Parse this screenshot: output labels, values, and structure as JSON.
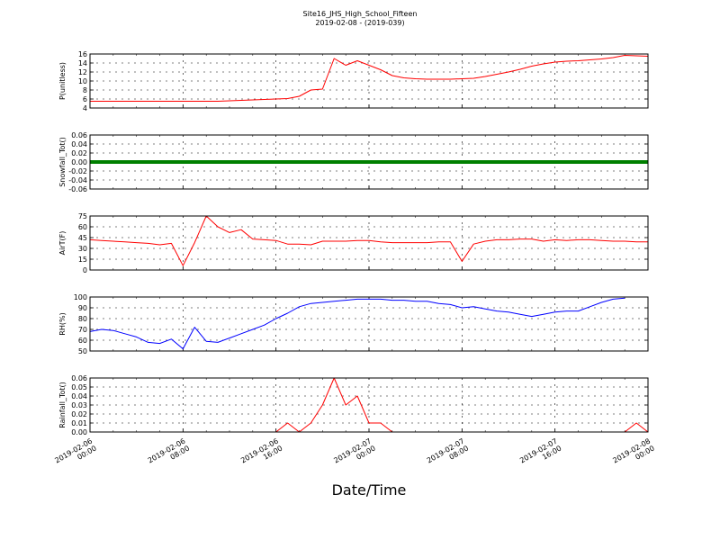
{
  "chart_data": [
    {
      "type": "line",
      "title": "Site16_JHS_High_School_Fifteen",
      "subtitle": "2019-02-08 - (2019-039)",
      "y_label": "P(unitless)",
      "color": "#ff0000",
      "linewidth": 1,
      "x": [
        "2019-02-06 00:00",
        "2019-02-06 01:00",
        "2019-02-06 02:00",
        "2019-02-06 03:00",
        "2019-02-06 04:00",
        "2019-02-06 05:00",
        "2019-02-06 06:00",
        "2019-02-06 07:00",
        "2019-02-06 08:00",
        "2019-02-06 09:00",
        "2019-02-06 10:00",
        "2019-02-06 11:00",
        "2019-02-06 12:00",
        "2019-02-06 13:00",
        "2019-02-06 14:00",
        "2019-02-06 15:00",
        "2019-02-06 16:00",
        "2019-02-06 17:00",
        "2019-02-06 18:00",
        "2019-02-06 19:00",
        "2019-02-06 20:00",
        "2019-02-06 21:00",
        "2019-02-06 22:00",
        "2019-02-06 23:00",
        "2019-02-07 00:00",
        "2019-02-07 01:00",
        "2019-02-07 02:00",
        "2019-02-07 03:00",
        "2019-02-07 04:00",
        "2019-02-07 05:00",
        "2019-02-07 06:00",
        "2019-02-07 07:00",
        "2019-02-07 08:00",
        "2019-02-07 09:00",
        "2019-02-07 10:00",
        "2019-02-07 11:00",
        "2019-02-07 12:00",
        "2019-02-07 13:00",
        "2019-02-07 14:00",
        "2019-02-07 15:00",
        "2019-02-07 16:00",
        "2019-02-07 17:00",
        "2019-02-07 18:00",
        "2019-02-07 19:00",
        "2019-02-07 20:00",
        "2019-02-07 21:00",
        "2019-02-07 22:00",
        "2019-02-07 23:00",
        "2019-02-08 00:00"
      ],
      "values": [
        5.5,
        5.5,
        5.5,
        5.5,
        5.5,
        5.5,
        5.5,
        5.5,
        5.5,
        5.5,
        5.5,
        5.5,
        5.6,
        5.7,
        5.8,
        5.9,
        6.0,
        6.1,
        6.6,
        8.0,
        8.2,
        15.0,
        13.5,
        14.5,
        13.5,
        12.5,
        11.2,
        10.7,
        10.5,
        10.4,
        10.4,
        10.4,
        10.5,
        10.6,
        11.0,
        11.5,
        12.0,
        12.6,
        13.3,
        13.8,
        14.2,
        14.4,
        14.5,
        14.7,
        14.9,
        15.2,
        15.7,
        15.6,
        15.5
      ],
      "xlim": [
        "2019-02-06 00:00",
        "2019-02-08 00:00"
      ],
      "xticks": [
        "2019-02-06 00:00",
        "2019-02-06 08:00",
        "2019-02-06 16:00",
        "2019-02-07 00:00",
        "2019-02-07 08:00",
        "2019-02-07 16:00",
        "2019-02-08 00:00"
      ],
      "ylim": [
        4,
        16
      ],
      "yticks": [
        4,
        6,
        8,
        10,
        12,
        14,
        16
      ],
      "grid": true
    },
    {
      "type": "line",
      "y_label": "Snowfall_Tot()",
      "color": "#008000",
      "linewidth": 4,
      "x": [
        "2019-02-06 00:00",
        "2019-02-06 01:00",
        "2019-02-06 02:00",
        "2019-02-06 03:00",
        "2019-02-06 04:00",
        "2019-02-06 05:00",
        "2019-02-06 06:00",
        "2019-02-06 07:00",
        "2019-02-06 08:00",
        "2019-02-06 09:00",
        "2019-02-06 10:00",
        "2019-02-06 11:00",
        "2019-02-06 12:00",
        "2019-02-06 13:00",
        "2019-02-06 14:00",
        "2019-02-06 15:00",
        "2019-02-06 16:00",
        "2019-02-06 17:00",
        "2019-02-06 18:00",
        "2019-02-06 19:00",
        "2019-02-06 20:00",
        "2019-02-06 21:00",
        "2019-02-06 22:00",
        "2019-02-06 23:00",
        "2019-02-07 00:00",
        "2019-02-07 01:00",
        "2019-02-07 02:00",
        "2019-02-07 03:00",
        "2019-02-07 04:00",
        "2019-02-07 05:00",
        "2019-02-07 06:00",
        "2019-02-07 07:00",
        "2019-02-07 08:00",
        "2019-02-07 09:00",
        "2019-02-07 10:00",
        "2019-02-07 11:00",
        "2019-02-07 12:00",
        "2019-02-07 13:00",
        "2019-02-07 14:00",
        "2019-02-07 15:00",
        "2019-02-07 16:00",
        "2019-02-07 17:00",
        "2019-02-07 18:00",
        "2019-02-07 19:00",
        "2019-02-07 20:00",
        "2019-02-07 21:00",
        "2019-02-07 22:00",
        "2019-02-07 23:00",
        "2019-02-08 00:00"
      ],
      "values": [
        0,
        0,
        0,
        0,
        0,
        0,
        0,
        0,
        0,
        0,
        0,
        0,
        0,
        0,
        0,
        0,
        0,
        0,
        0,
        0,
        0,
        0,
        0,
        0,
        0,
        0,
        0,
        0,
        0,
        0,
        0,
        0,
        0,
        0,
        0,
        0,
        0,
        0,
        0,
        0,
        0,
        0,
        0,
        0,
        0,
        0,
        0,
        0,
        0
      ],
      "xlim": [
        "2019-02-06 00:00",
        "2019-02-08 00:00"
      ],
      "xticks": [
        "2019-02-06 00:00",
        "2019-02-06 08:00",
        "2019-02-06 16:00",
        "2019-02-07 00:00",
        "2019-02-07 08:00",
        "2019-02-07 16:00",
        "2019-02-08 00:00"
      ],
      "ylim": [
        -0.06,
        0.06
      ],
      "yticks": [
        -0.06,
        -0.04,
        -0.02,
        {
          "value": 0,
          "label": "0.00"
        },
        0.02,
        0.04,
        0.06
      ],
      "grid": true
    },
    {
      "type": "line",
      "y_label": "AirT(F)",
      "color": "#ff0000",
      "linewidth": 1,
      "x": [
        "2019-02-06 00:00",
        "2019-02-06 01:00",
        "2019-02-06 02:00",
        "2019-02-06 03:00",
        "2019-02-06 04:00",
        "2019-02-06 05:00",
        "2019-02-06 06:00",
        "2019-02-06 07:00",
        "2019-02-06 08:00",
        "2019-02-06 09:00",
        "2019-02-06 10:00",
        "2019-02-06 11:00",
        "2019-02-06 12:00",
        "2019-02-06 13:00",
        "2019-02-06 14:00",
        "2019-02-06 15:00",
        "2019-02-06 16:00",
        "2019-02-06 17:00",
        "2019-02-06 18:00",
        "2019-02-06 19:00",
        "2019-02-06 20:00",
        "2019-02-06 21:00",
        "2019-02-06 22:00",
        "2019-02-06 23:00",
        "2019-02-07 00:00",
        "2019-02-07 01:00",
        "2019-02-07 02:00",
        "2019-02-07 03:00",
        "2019-02-07 04:00",
        "2019-02-07 05:00",
        "2019-02-07 06:00",
        "2019-02-07 07:00",
        "2019-02-07 08:00",
        "2019-02-07 09:00",
        "2019-02-07 10:00",
        "2019-02-07 11:00",
        "2019-02-07 12:00",
        "2019-02-07 13:00",
        "2019-02-07 14:00",
        "2019-02-07 15:00",
        "2019-02-07 16:00",
        "2019-02-07 17:00",
        "2019-02-07 18:00",
        "2019-02-07 19:00",
        "2019-02-07 20:00",
        "2019-02-07 21:00",
        "2019-02-07 22:00",
        "2019-02-07 23:00",
        "2019-02-08 00:00"
      ],
      "values": [
        42,
        41,
        40,
        39,
        38,
        37,
        35,
        37,
        6,
        38,
        75,
        60,
        52,
        56,
        43,
        42,
        41,
        36,
        36,
        35,
        40,
        40,
        40,
        41,
        41,
        39,
        38,
        38,
        38,
        38,
        39,
        39,
        12,
        36,
        40,
        42,
        42,
        43,
        43,
        40,
        42,
        41,
        42,
        42,
        41,
        40,
        40,
        39,
        39
      ],
      "xlim": [
        "2019-02-06 00:00",
        "2019-02-08 00:00"
      ],
      "xticks": [
        "2019-02-06 00:00",
        "2019-02-06 08:00",
        "2019-02-06 16:00",
        "2019-02-07 00:00",
        "2019-02-07 08:00",
        "2019-02-07 16:00",
        "2019-02-08 00:00"
      ],
      "ylim": [
        0,
        75
      ],
      "yticks": [
        0,
        15,
        30,
        45,
        60,
        75
      ],
      "grid": true
    },
    {
      "type": "line",
      "y_label": "RH(%)",
      "color": "#0000ff",
      "linewidth": 1,
      "x": [
        "2019-02-06 00:00",
        "2019-02-06 01:00",
        "2019-02-06 02:00",
        "2019-02-06 03:00",
        "2019-02-06 04:00",
        "2019-02-06 05:00",
        "2019-02-06 06:00",
        "2019-02-06 07:00",
        "2019-02-06 08:00",
        "2019-02-06 09:00",
        "2019-02-06 10:00",
        "2019-02-06 11:00",
        "2019-02-06 12:00",
        "2019-02-06 13:00",
        "2019-02-06 14:00",
        "2019-02-06 15:00",
        "2019-02-06 16:00",
        "2019-02-06 17:00",
        "2019-02-06 18:00",
        "2019-02-06 19:00",
        "2019-02-06 20:00",
        "2019-02-06 21:00",
        "2019-02-06 22:00",
        "2019-02-06 23:00",
        "2019-02-07 00:00",
        "2019-02-07 01:00",
        "2019-02-07 02:00",
        "2019-02-07 03:00",
        "2019-02-07 04:00",
        "2019-02-07 05:00",
        "2019-02-07 06:00",
        "2019-02-07 07:00",
        "2019-02-07 08:00",
        "2019-02-07 09:00",
        "2019-02-07 10:00",
        "2019-02-07 11:00",
        "2019-02-07 12:00",
        "2019-02-07 13:00",
        "2019-02-07 14:00",
        "2019-02-07 15:00",
        "2019-02-07 16:00",
        "2019-02-07 17:00",
        "2019-02-07 18:00",
        "2019-02-07 19:00",
        "2019-02-07 20:00",
        "2019-02-07 21:00",
        "2019-02-07 22:00",
        "2019-02-07 23:00",
        "2019-02-08 00:00"
      ],
      "values": [
        68,
        70,
        69,
        66,
        63,
        58,
        57,
        61,
        52,
        72,
        59,
        58,
        62,
        66,
        70,
        74,
        80,
        85,
        91,
        94,
        95,
        96,
        97,
        98,
        98,
        98,
        97,
        97,
        96,
        96,
        94,
        93,
        90,
        91,
        89,
        87,
        86,
        84,
        82,
        84,
        86,
        87,
        87,
        91,
        95,
        98,
        99,
        null,
        null
      ],
      "xlim": [
        "2019-02-06 00:00",
        "2019-02-08 00:00"
      ],
      "xticks": [
        "2019-02-06 00:00",
        "2019-02-06 08:00",
        "2019-02-06 16:00",
        "2019-02-07 00:00",
        "2019-02-07 08:00",
        "2019-02-07 16:00",
        "2019-02-08 00:00"
      ],
      "ylim": [
        50,
        100
      ],
      "yticks": [
        50,
        60,
        70,
        80,
        90,
        100
      ],
      "grid": true
    },
    {
      "type": "line",
      "y_label": "Rainfall_Tot()",
      "x_label": "Date/Time",
      "color": "#ff0000",
      "linewidth": 1,
      "x": [
        "2019-02-06 00:00",
        "2019-02-06 01:00",
        "2019-02-06 02:00",
        "2019-02-06 03:00",
        "2019-02-06 04:00",
        "2019-02-06 05:00",
        "2019-02-06 06:00",
        "2019-02-06 07:00",
        "2019-02-06 08:00",
        "2019-02-06 09:00",
        "2019-02-06 10:00",
        "2019-02-06 11:00",
        "2019-02-06 12:00",
        "2019-02-06 13:00",
        "2019-02-06 14:00",
        "2019-02-06 15:00",
        "2019-02-06 16:00",
        "2019-02-06 17:00",
        "2019-02-06 18:00",
        "2019-02-06 19:00",
        "2019-02-06 20:00",
        "2019-02-06 21:00",
        "2019-02-06 22:00",
        "2019-02-06 23:00",
        "2019-02-07 00:00",
        "2019-02-07 01:00",
        "2019-02-07 02:00",
        "2019-02-07 03:00",
        "2019-02-07 04:00",
        "2019-02-07 05:00",
        "2019-02-07 06:00",
        "2019-02-07 07:00",
        "2019-02-07 08:00",
        "2019-02-07 09:00",
        "2019-02-07 10:00",
        "2019-02-07 11:00",
        "2019-02-07 12:00",
        "2019-02-07 13:00",
        "2019-02-07 14:00",
        "2019-02-07 15:00",
        "2019-02-07 16:00",
        "2019-02-07 17:00",
        "2019-02-07 18:00",
        "2019-02-07 19:00",
        "2019-02-07 20:00",
        "2019-02-07 21:00",
        "2019-02-07 22:00",
        "2019-02-07 23:00",
        "2019-02-08 00:00"
      ],
      "values": [
        0,
        0,
        0,
        0,
        0,
        0,
        0,
        0,
        0,
        0,
        0,
        0,
        0,
        0,
        0,
        0,
        0,
        0.01,
        0,
        0.01,
        0.03,
        0.06,
        0.03,
        0.04,
        0.01,
        0.01,
        0,
        0,
        0,
        0,
        0,
        0,
        0,
        0,
        0,
        0,
        0,
        0,
        0,
        0,
        0,
        0,
        0,
        0,
        0,
        0,
        0,
        0.01,
        0
      ],
      "xlim": [
        "2019-02-06 00:00",
        "2019-02-08 00:00"
      ],
      "xticks": [
        "2019-02-06 00:00",
        "2019-02-06 08:00",
        "2019-02-06 16:00",
        "2019-02-07 00:00",
        "2019-02-07 08:00",
        "2019-02-07 16:00",
        "2019-02-08 00:00"
      ],
      "ylim": [
        0,
        0.06
      ],
      "yticks": [
        {
          "value": 0,
          "label": "0.00"
        },
        0.01,
        0.02,
        0.03,
        0.04,
        0.05,
        0.06
      ],
      "grid": true
    }
  ]
}
